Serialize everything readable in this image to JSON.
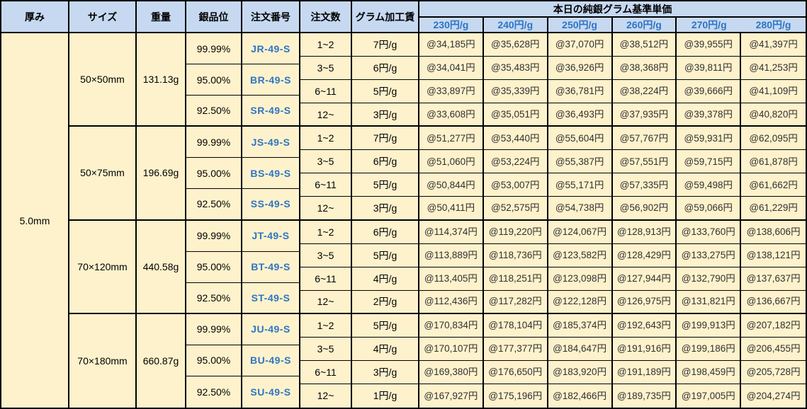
{
  "table": {
    "headers": {
      "thickness": "厚み",
      "size": "サイズ",
      "weight": "重量",
      "purity": "銀品位",
      "order_no": "注文番号",
      "order_qty": "注文数",
      "gram_fee": "グラム加工賃",
      "base_price_group": "本日の純銀グラム基準単価",
      "price_columns": [
        "230円/g",
        "240円/g",
        "250円/g",
        "260円/g",
        "270円/g",
        "280円/g"
      ]
    },
    "thickness": "5.0mm",
    "blocks": [
      {
        "size": "50×50mm",
        "weight": "131.13g",
        "purities": [
          {
            "purity": "99.99%",
            "order_no": "JR-49-S"
          },
          {
            "purity": "95.00%",
            "order_no": "BR-49-S"
          },
          {
            "purity": "92.50%",
            "order_no": "SR-49-S"
          }
        ],
        "rows": [
          {
            "qty": "1~2",
            "fee": "7円/g",
            "prices": [
              "@34,185円",
              "@35,628円",
              "@37,070円",
              "@38,512円",
              "@39,955円",
              "@41,397円"
            ]
          },
          {
            "qty": "3~5",
            "fee": "6円/g",
            "prices": [
              "@34,041円",
              "@35,483円",
              "@36,926円",
              "@38,368円",
              "@39,811円",
              "@41,253円"
            ]
          },
          {
            "qty": "6~11",
            "fee": "5円/g",
            "prices": [
              "@33,897円",
              "@35,339円",
              "@36,781円",
              "@38,224円",
              "@39,666円",
              "@41,109円"
            ]
          },
          {
            "qty": "12~",
            "fee": "3円/g",
            "prices": [
              "@33,608円",
              "@35,051円",
              "@36,493円",
              "@37,935円",
              "@39,378円",
              "@40,820円"
            ]
          }
        ]
      },
      {
        "size": "50×75mm",
        "weight": "196.69g",
        "purities": [
          {
            "purity": "99.99%",
            "order_no": "JS-49-S"
          },
          {
            "purity": "95.00%",
            "order_no": "BS-49-S"
          },
          {
            "purity": "92.50%",
            "order_no": "SS-49-S"
          }
        ],
        "rows": [
          {
            "qty": "1~2",
            "fee": "7円/g",
            "prices": [
              "@51,277円",
              "@53,440円",
              "@55,604円",
              "@57,767円",
              "@59,931円",
              "@62,095円"
            ]
          },
          {
            "qty": "3~5",
            "fee": "6円/g",
            "prices": [
              "@51,060円",
              "@53,224円",
              "@55,387円",
              "@57,551円",
              "@59,715円",
              "@61,878円"
            ]
          },
          {
            "qty": "6~11",
            "fee": "5円/g",
            "prices": [
              "@50,844円",
              "@53,007円",
              "@55,171円",
              "@57,335円",
              "@59,498円",
              "@61,662円"
            ]
          },
          {
            "qty": "12~",
            "fee": "3円/g",
            "prices": [
              "@50,411円",
              "@52,575円",
              "@54,738円",
              "@56,902円",
              "@59,066円",
              "@61,229円"
            ]
          }
        ]
      },
      {
        "size": "70×120mm",
        "weight": "440.58g",
        "purities": [
          {
            "purity": "99.99%",
            "order_no": "JT-49-S"
          },
          {
            "purity": "95.00%",
            "order_no": "BT-49-S"
          },
          {
            "purity": "92.50%",
            "order_no": "ST-49-S"
          }
        ],
        "rows": [
          {
            "qty": "1~2",
            "fee": "6円/g",
            "prices": [
              "@114,374円",
              "@119,220円",
              "@124,067円",
              "@128,913円",
              "@133,760円",
              "@138,606円"
            ]
          },
          {
            "qty": "3~5",
            "fee": "5円/g",
            "prices": [
              "@113,889円",
              "@118,736円",
              "@123,582円",
              "@128,429円",
              "@133,275円",
              "@138,121円"
            ]
          },
          {
            "qty": "6~11",
            "fee": "4円/g",
            "prices": [
              "@113,405円",
              "@118,251円",
              "@123,098円",
              "@127,944円",
              "@132,790円",
              "@137,637円"
            ]
          },
          {
            "qty": "12~",
            "fee": "2円/g",
            "prices": [
              "@112,436円",
              "@117,282円",
              "@122,128円",
              "@126,975円",
              "@131,821円",
              "@136,667円"
            ]
          }
        ]
      },
      {
        "size": "70×180mm",
        "weight": "660.87g",
        "purities": [
          {
            "purity": "99.99%",
            "order_no": "JU-49-S"
          },
          {
            "purity": "95.00%",
            "order_no": "BU-49-S"
          },
          {
            "purity": "92.50%",
            "order_no": "SU-49-S"
          }
        ],
        "rows": [
          {
            "qty": "1~2",
            "fee": "5円/g",
            "prices": [
              "@170,834円",
              "@178,104円",
              "@185,374円",
              "@192,643円",
              "@199,913円",
              "@207,182円"
            ]
          },
          {
            "qty": "3~5",
            "fee": "4円/g",
            "prices": [
              "@170,107円",
              "@177,377円",
              "@184,647円",
              "@191,916円",
              "@199,186円",
              "@206,455円"
            ]
          },
          {
            "qty": "6~11",
            "fee": "3円/g",
            "prices": [
              "@169,380円",
              "@176,650円",
              "@183,920円",
              "@191,189円",
              "@198,459円",
              "@205,728円"
            ]
          },
          {
            "qty": "12~",
            "fee": "1円/g",
            "prices": [
              "@167,927円",
              "@175,196円",
              "@182,466円",
              "@189,735円",
              "@197,005円",
              "@204,274円"
            ]
          }
        ]
      }
    ],
    "colors": {
      "header_bg": "#C6D9F1",
      "cell_bg": "#FEF2CC",
      "accent_blue": "#2E75C3",
      "border": "#000000",
      "price_text": "#303030"
    }
  }
}
